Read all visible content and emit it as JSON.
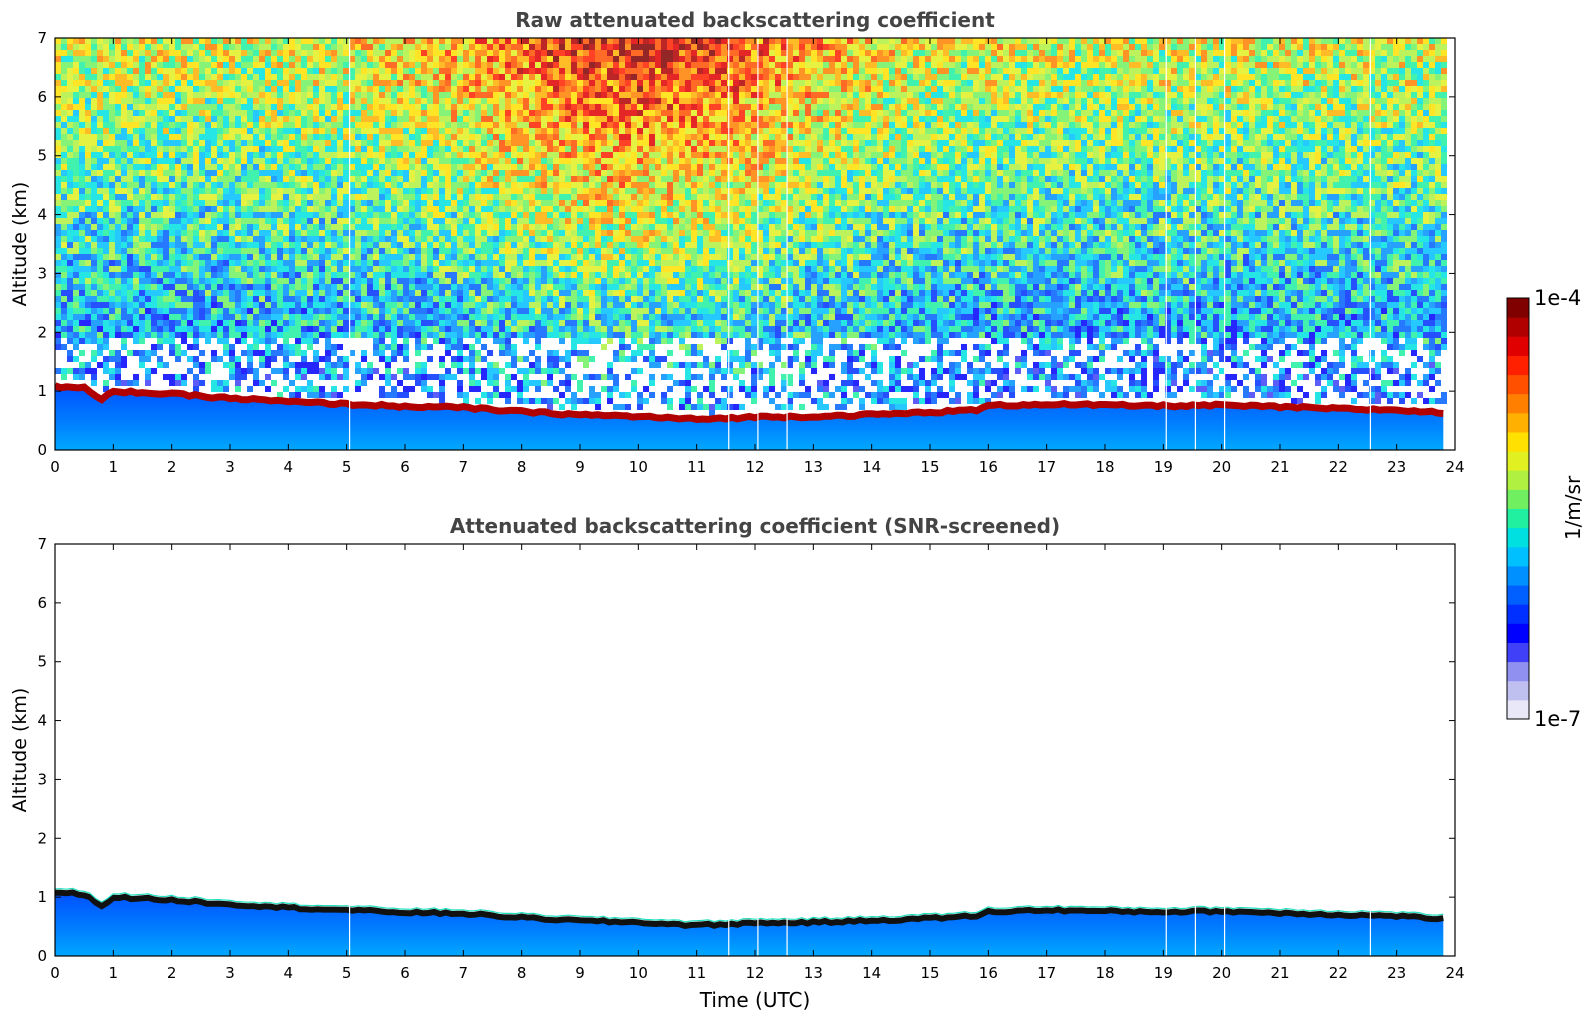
{
  "chart_data": [
    {
      "type": "heatmap",
      "title": "Raw attenuated backscattering coefficient",
      "xlabel": "",
      "ylabel": "Altitude (km)",
      "xlim": [
        0,
        24
      ],
      "ylim": [
        0,
        7
      ],
      "x_ticks": [
        "0",
        "1",
        "2",
        "3",
        "4",
        "5",
        "6",
        "7",
        "8",
        "9",
        "10",
        "11",
        "12",
        "13",
        "14",
        "15",
        "16",
        "17",
        "18",
        "19",
        "20",
        "21",
        "22",
        "23",
        "24"
      ],
      "y_ticks": [
        "0",
        "1",
        "2",
        "3",
        "4",
        "5",
        "6",
        "7"
      ],
      "data_end_hour": 23.8,
      "data_gaps_hours": [
        5.05,
        11.55,
        12.05,
        12.55,
        19.05,
        19.55,
        20.05,
        22.55
      ],
      "layer_top_km": {
        "hours": [
          0,
          0.5,
          0.8,
          1,
          2,
          3,
          4,
          5,
          6,
          7,
          8,
          9,
          10,
          11,
          12,
          13,
          14,
          15,
          15.8,
          16,
          17,
          18,
          19,
          20,
          21,
          22,
          23,
          23.8
        ],
        "km": [
          1.08,
          1.05,
          0.85,
          1.0,
          0.95,
          0.88,
          0.82,
          0.78,
          0.74,
          0.72,
          0.65,
          0.6,
          0.57,
          0.52,
          0.56,
          0.57,
          0.6,
          0.64,
          0.68,
          0.75,
          0.78,
          0.76,
          0.75,
          0.76,
          0.73,
          0.7,
          0.68,
          0.63
        ]
      },
      "background_noise": "present"
    },
    {
      "type": "heatmap",
      "title": "Attenuated backscattering coefficient (SNR-screened)",
      "xlabel": "Time (UTC)",
      "ylabel": "Altitude (km)",
      "xlim": [
        0,
        24
      ],
      "ylim": [
        0,
        7
      ],
      "x_ticks": [
        "0",
        "1",
        "2",
        "3",
        "4",
        "5",
        "6",
        "7",
        "8",
        "9",
        "10",
        "11",
        "12",
        "13",
        "14",
        "15",
        "16",
        "17",
        "18",
        "19",
        "20",
        "21",
        "22",
        "23",
        "24"
      ],
      "y_ticks": [
        "0",
        "1",
        "2",
        "3",
        "4",
        "5",
        "6",
        "7"
      ],
      "data_end_hour": 23.8,
      "data_gaps_hours": [
        5.05,
        11.55,
        12.05,
        12.55,
        19.05,
        19.55,
        20.05,
        22.55
      ],
      "background_noise": "screened"
    }
  ],
  "colorbar": {
    "label": "1/m/sr",
    "max_label": "1e-4",
    "min_label": "1e-7",
    "scale": "log",
    "range": [
      1e-07,
      0.0001
    ],
    "colors": [
      "#e8e8f8",
      "#c0c0f0",
      "#9090f0",
      "#4040f8",
      "#0000ff",
      "#0030ff",
      "#0060ff",
      "#0090ff",
      "#00c0ff",
      "#00e0e0",
      "#20f0a0",
      "#70f060",
      "#b0f040",
      "#e0f020",
      "#ffe000",
      "#ffb000",
      "#ff8000",
      "#ff5000",
      "#ff2000",
      "#e00000",
      "#b00000",
      "#800000"
    ]
  }
}
